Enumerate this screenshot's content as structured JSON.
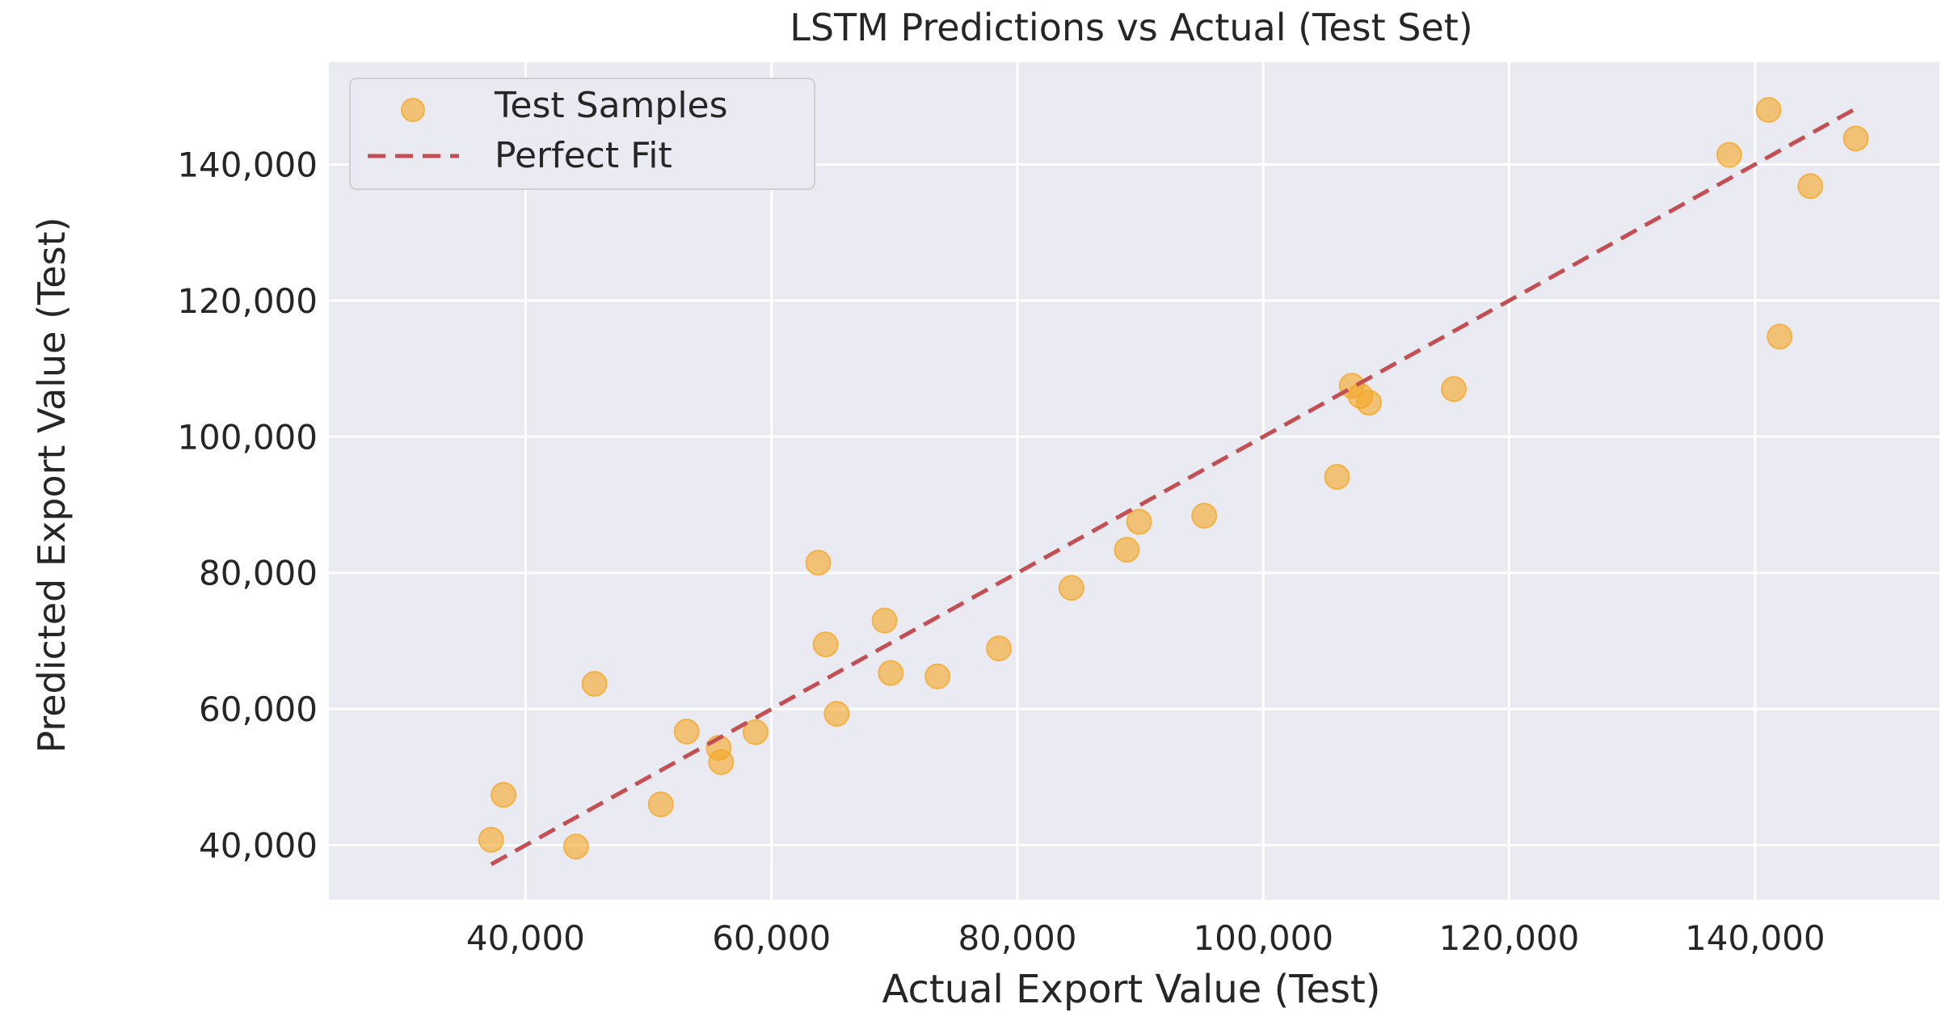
{
  "chart_data": {
    "type": "scatter",
    "title": "LSTM Predictions vs Actual (Test Set)",
    "xlabel": "Actual Export Value (Test)",
    "ylabel": "Predicted Export Value (Test)",
    "xlim": [
      24000,
      155000
    ],
    "ylim": [
      32000,
      155000
    ],
    "xticks": [
      40000,
      60000,
      80000,
      100000,
      120000,
      140000
    ],
    "yticks": [
      40000,
      60000,
      80000,
      100000,
      120000,
      140000
    ],
    "grid": true,
    "legend": {
      "placement": "top-left"
    },
    "series": [
      {
        "name": "Test Samples",
        "kind": "scatter",
        "color": "#f5a623",
        "points": [
          [
            37200,
            40800
          ],
          [
            38200,
            47400
          ],
          [
            44100,
            39800
          ],
          [
            45600,
            63700
          ],
          [
            51000,
            46000
          ],
          [
            53100,
            56700
          ],
          [
            55700,
            54300
          ],
          [
            55900,
            52200
          ],
          [
            58700,
            56600
          ],
          [
            63800,
            81500
          ],
          [
            64400,
            69500
          ],
          [
            65300,
            59300
          ],
          [
            69200,
            73000
          ],
          [
            69700,
            65300
          ],
          [
            73500,
            64800
          ],
          [
            78500,
            68900
          ],
          [
            84400,
            77800
          ],
          [
            88900,
            83400
          ],
          [
            89900,
            87500
          ],
          [
            95200,
            88400
          ],
          [
            106000,
            94100
          ],
          [
            107200,
            107500
          ],
          [
            107900,
            106000
          ],
          [
            108600,
            105000
          ],
          [
            115500,
            107000
          ],
          [
            137900,
            141400
          ],
          [
            141100,
            148000
          ],
          [
            142000,
            114700
          ],
          [
            144500,
            136800
          ],
          [
            148200,
            143800
          ]
        ]
      },
      {
        "name": "Perfect Fit",
        "kind": "line",
        "style": "dashed",
        "color": "#c44e52",
        "points": [
          [
            37200,
            37200
          ],
          [
            148200,
            148200
          ]
        ]
      }
    ]
  }
}
